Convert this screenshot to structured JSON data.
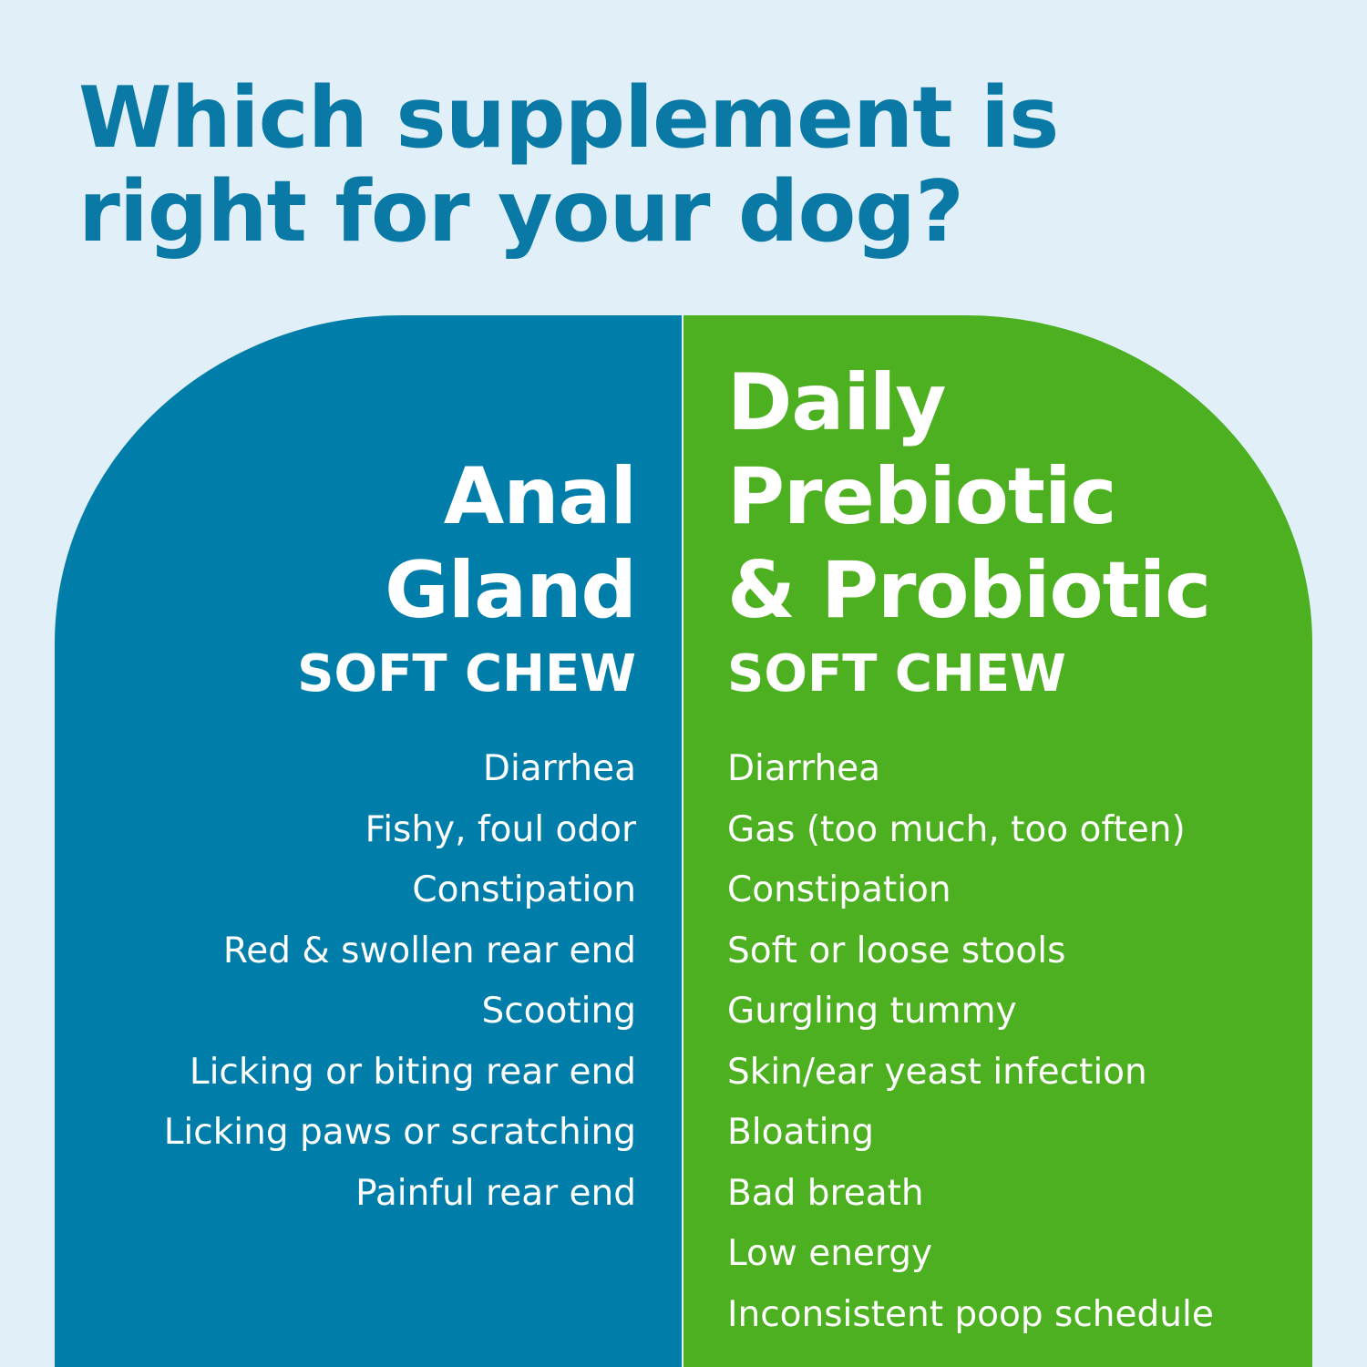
{
  "title": {
    "line1": "Which supplement is",
    "line2": "right for your dog?"
  },
  "colors": {
    "background": "#e1f0f8",
    "title": "#0b79a6",
    "anal_gland_panel": "#007ea9",
    "probiotic_panel": "#4db020"
  },
  "anal_gland": {
    "name_lines": [
      "Anal",
      "Gland"
    ],
    "subtitle": "SOFT CHEW",
    "symptoms": [
      "Diarrhea",
      "Fishy, foul odor",
      "Constipation",
      "Red & swollen rear end",
      "Scooting",
      "Licking or biting rear end",
      "Licking paws or scratching",
      "Painful rear end"
    ]
  },
  "probiotic": {
    "name_lines": [
      "Daily",
      "Prebiotic",
      "& Probiotic"
    ],
    "subtitle": "SOFT CHEW",
    "symptoms": [
      "Diarrhea",
      "Gas (too much, too often)",
      "Constipation",
      "Soft or loose stools",
      "Gurgling tummy",
      "Skin/ear yeast infection",
      "Bloating",
      "Bad breath",
      "Low energy",
      "Inconsistent poop schedule"
    ]
  }
}
